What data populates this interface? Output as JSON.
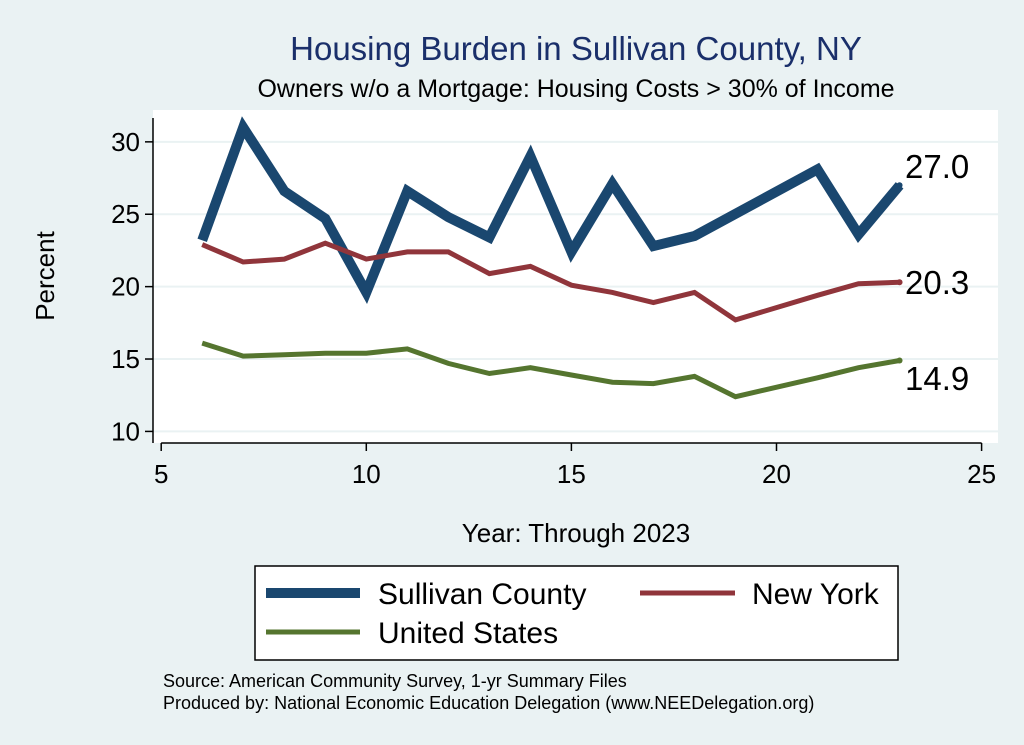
{
  "chart_data": {
    "type": "line",
    "title": "Housing Burden in Sullivan County, NY",
    "subtitle": "Owners w/o a Mortgage: Housing Costs > 30% of Income",
    "xlabel": "Year: Through 2023",
    "ylabel": "Percent",
    "xlim": [
      4.8,
      25.4
    ],
    "ylim": [
      9.2,
      32.2
    ],
    "xticks": [
      5,
      10,
      15,
      20,
      25
    ],
    "yticks": [
      10,
      15,
      20,
      25,
      30
    ],
    "grid": true,
    "legend_position": "bottom",
    "series": [
      {
        "name": "Sullivan County",
        "color": "#1a476f",
        "x": [
          6,
          7,
          8,
          9,
          10,
          11,
          12,
          13,
          14,
          15,
          16,
          17,
          18,
          21,
          22,
          23
        ],
        "values": [
          23.2,
          31.0,
          26.6,
          24.7,
          19.6,
          26.6,
          24.8,
          23.4,
          29.0,
          22.4,
          27.1,
          22.8,
          23.5,
          28.1,
          23.6,
          27.0
        ],
        "end_label": "27.0"
      },
      {
        "name": "New York",
        "color": "#90353b",
        "x": [
          6,
          7,
          8,
          9,
          10,
          11,
          12,
          13,
          14,
          15,
          16,
          17,
          18,
          19,
          21,
          22,
          23
        ],
        "values": [
          22.9,
          21.7,
          21.9,
          23.0,
          21.9,
          22.4,
          22.4,
          20.9,
          21.4,
          20.1,
          19.6,
          18.9,
          19.6,
          17.7,
          19.4,
          20.2,
          20.3
        ],
        "end_label": "20.3"
      },
      {
        "name": "United States",
        "color": "#55752f",
        "x": [
          6,
          7,
          8,
          9,
          10,
          11,
          12,
          13,
          14,
          15,
          16,
          17,
          18,
          19,
          21,
          22,
          23
        ],
        "values": [
          16.1,
          15.2,
          15.3,
          15.4,
          15.4,
          15.7,
          14.7,
          14.0,
          14.4,
          13.9,
          13.4,
          13.3,
          13.8,
          12.4,
          13.7,
          14.4,
          14.9
        ],
        "end_label": "14.9"
      }
    ]
  },
  "title_color": "#1a2f6a",
  "source_line": "Source: American Community Survey, 1-yr Summary Files",
  "produced_line": "Produced by: National Economic Education Delegation (www.NEEDelegation.org)"
}
